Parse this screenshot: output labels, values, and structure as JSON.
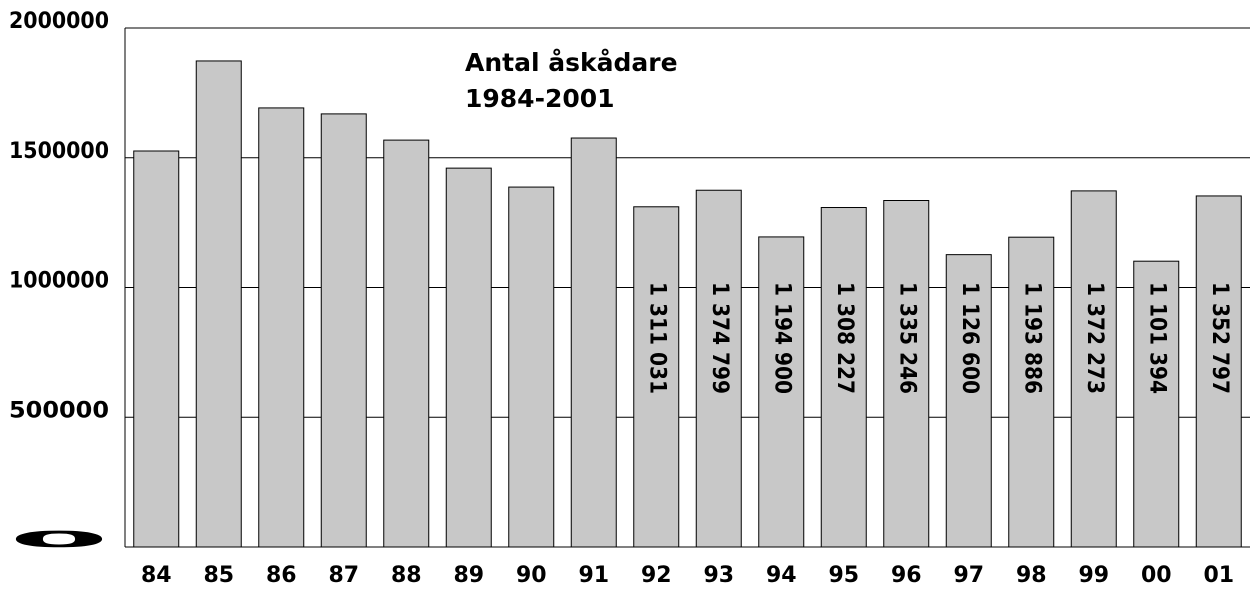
{
  "chart_data": {
    "type": "bar",
    "title": "Antal åskådare",
    "subtitle": "1984-2001",
    "categories": [
      "84",
      "85",
      "86",
      "87",
      "88",
      "89",
      "90",
      "91",
      "92",
      "93",
      "94",
      "95",
      "96",
      "97",
      "98",
      "99",
      "00",
      "01"
    ],
    "values": [
      1526000,
      1873000,
      1692000,
      1669000,
      1568000,
      1460000,
      1387000,
      1576000,
      1311031,
      1374799,
      1194900,
      1308227,
      1335246,
      1126600,
      1193886,
      1372273,
      1101394,
      1352797
    ],
    "value_labels": [
      null,
      null,
      null,
      null,
      null,
      null,
      null,
      null,
      "1 311 031",
      "1 374 799",
      "1 194 900",
      "1 308 227",
      "1 335 246",
      "1 126 600",
      "1 193 886",
      "1 372 273",
      "1 101 394",
      "1 352 797"
    ],
    "color": "#c8c8c8",
    "ylim": [
      0,
      2000000
    ],
    "yticks": [
      0,
      500000,
      1000000,
      1500000,
      2000000
    ],
    "grid": true
  }
}
